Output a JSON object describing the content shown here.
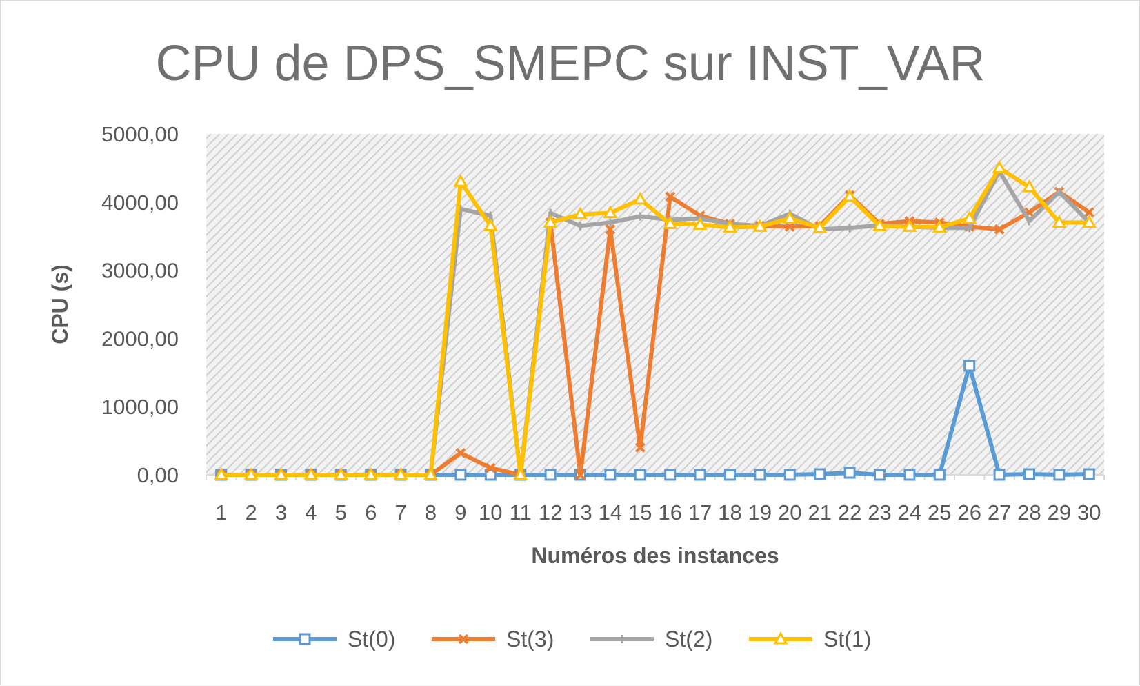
{
  "chart_data": {
    "type": "line",
    "title": "CPU de DPS_SMEPC sur INST_VAR",
    "xlabel": "Numéros des instances",
    "ylabel": "CPU (s)",
    "ylim": [
      0,
      5000
    ],
    "y_ticks": [
      "0,00",
      "1000,00",
      "2000,00",
      "3000,00",
      "4000,00",
      "5000,00"
    ],
    "categories": [
      "1",
      "2",
      "3",
      "4",
      "5",
      "6",
      "7",
      "8",
      "9",
      "10",
      "11",
      "12",
      "13",
      "14",
      "15",
      "16",
      "17",
      "18",
      "19",
      "20",
      "21",
      "22",
      "23",
      "24",
      "25",
      "26",
      "27",
      "28",
      "29",
      "30"
    ],
    "legend_position": "bottom",
    "plot_background": "diagonal hatch, light gray",
    "series": [
      {
        "name": "St(0)",
        "color": "#5b9bd5",
        "marker": "square",
        "values": [
          0,
          0,
          0,
          0,
          0,
          0,
          0,
          0,
          0,
          0,
          0,
          0,
          0,
          0,
          0,
          0,
          0,
          0,
          0,
          0,
          10,
          30,
          0,
          0,
          0,
          1600,
          0,
          10,
          0,
          10
        ]
      },
      {
        "name": "St(3)",
        "color": "#ed7d31",
        "marker": "x",
        "values": [
          0,
          0,
          0,
          0,
          0,
          0,
          0,
          0,
          320,
          100,
          0,
          3700,
          0,
          3600,
          400,
          4080,
          3800,
          3680,
          3650,
          3640,
          3650,
          4100,
          3680,
          3720,
          3700,
          3640,
          3600,
          3850,
          4150,
          3850
        ]
      },
      {
        "name": "St(2)",
        "color": "#a5a5a5",
        "marker": "plus",
        "values": [
          0,
          0,
          0,
          0,
          0,
          0,
          0,
          0,
          3900,
          3800,
          0,
          3840,
          3650,
          3700,
          3790,
          3740,
          3760,
          3680,
          3650,
          3830,
          3600,
          3620,
          3660,
          3640,
          3620,
          3620,
          4450,
          3720,
          4150,
          3700
        ]
      },
      {
        "name": "St(1)",
        "color": "#ffc000",
        "marker": "triangle",
        "values": [
          0,
          0,
          0,
          0,
          0,
          0,
          0,
          0,
          4300,
          3650,
          0,
          3700,
          3820,
          3840,
          4040,
          3680,
          3670,
          3630,
          3640,
          3760,
          3620,
          4080,
          3650,
          3640,
          3630,
          3760,
          4500,
          4220,
          3700,
          3700
        ]
      }
    ]
  }
}
